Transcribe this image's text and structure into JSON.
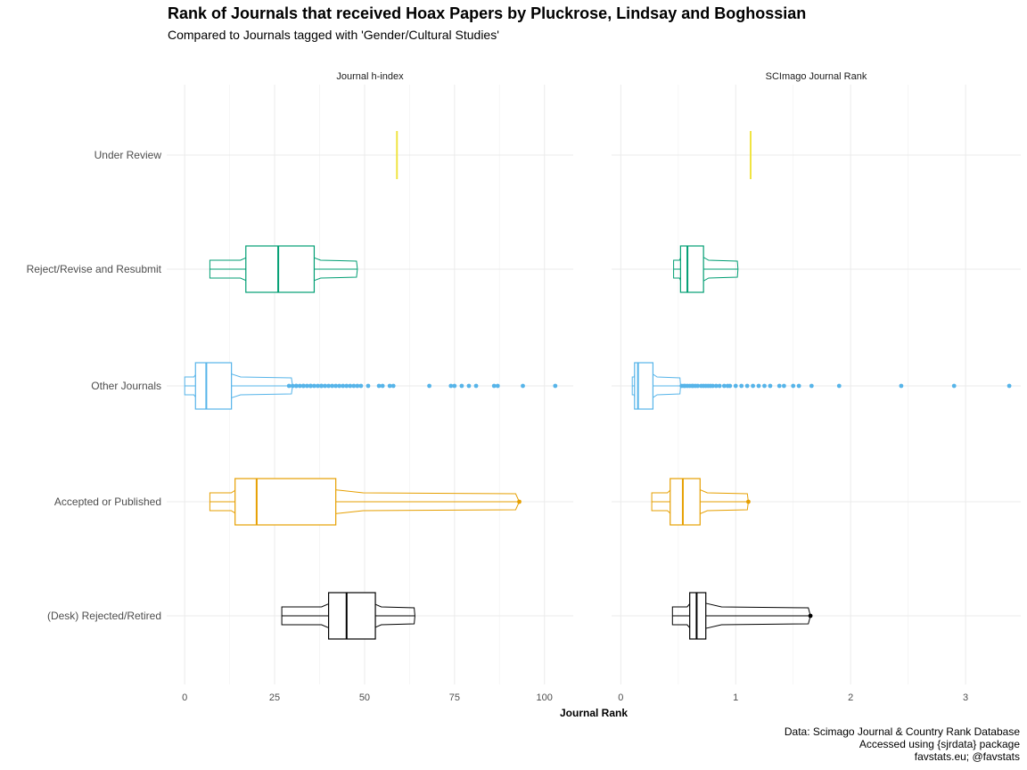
{
  "title": "Rank of Journals that received Hoax Papers by Pluckrose, Lindsay and Boghossian",
  "subtitle": "Compared to Journals tagged with 'Gender/Cultural Studies'",
  "caption": [
    "Data: Scimago Journal & Country Rank Database",
    "Accessed using {sjrdata} package",
    "favstats.eu; @favstats"
  ],
  "chart_data": {
    "type": "violin+boxplot",
    "xlabel": "Journal Rank",
    "categories": [
      "Under Review",
      "Reject/Revise and Resubmit",
      "Other Journals",
      "Accepted or Published",
      "(Desk) Rejected/Retired"
    ],
    "colors": {
      "Under Review": "#F0E442",
      "Reject/Revise and Resubmit": "#009E73",
      "Other Journals": "#56B4E9",
      "Accepted or Published": "#E69F00",
      "(Desk) Rejected/Retired": "#000000"
    },
    "panels": [
      {
        "title": "Journal h-index",
        "xlim": [
          -5,
          108
        ],
        "xticks": [
          0,
          25,
          50,
          75,
          100
        ],
        "xtick_labels": [
          "0",
          "25",
          "50",
          "75",
          "100"
        ],
        "series": [
          {
            "category": "Under Review",
            "min": 59,
            "q1": 59,
            "median": 59,
            "q3": 59,
            "max": 59,
            "outliers": []
          },
          {
            "category": "Reject/Revise and Resubmit",
            "min": 7,
            "q1": 17,
            "median": 26,
            "q3": 36,
            "max": 48,
            "outliers": []
          },
          {
            "category": "Other Journals",
            "min": 0,
            "q1": 3,
            "median": 6,
            "q3": 13,
            "max": 30,
            "outliers": [
              29,
              30,
              31,
              31,
              32,
              33,
              33,
              34,
              35,
              35,
              36,
              37,
              38,
              38,
              39,
              40,
              41,
              42,
              43,
              44,
              45,
              46,
              47,
              48,
              49,
              51,
              54,
              55,
              57,
              58,
              68,
              74,
              75,
              77,
              79,
              81,
              86,
              87,
              94,
              103
            ]
          },
          {
            "category": "Accepted or Published",
            "min": 7,
            "q1": 14,
            "median": 20,
            "q3": 42,
            "max": 93,
            "outliers": [
              93
            ]
          },
          {
            "category": "(Desk) Rejected/Retired",
            "min": 27,
            "q1": 40,
            "median": 45,
            "q3": 53,
            "max": 64,
            "outliers": []
          }
        ]
      },
      {
        "title": "SCImago Journal Rank",
        "xlim": [
          -0.08,
          3.48
        ],
        "xticks": [
          0,
          1,
          2,
          3
        ],
        "xtick_labels": [
          "0",
          "1",
          "2",
          "3"
        ],
        "series": [
          {
            "category": "Under Review",
            "min": 1.13,
            "q1": 1.13,
            "median": 1.13,
            "q3": 1.13,
            "max": 1.13,
            "outliers": []
          },
          {
            "category": "Reject/Revise and Resubmit",
            "min": 0.46,
            "q1": 0.52,
            "median": 0.58,
            "q3": 0.72,
            "max": 1.02,
            "outliers": []
          },
          {
            "category": "Other Journals",
            "min": 0.1,
            "q1": 0.12,
            "median": 0.15,
            "q3": 0.28,
            "max": 0.52,
            "outliers": [
              0.53,
              0.55,
              0.56,
              0.58,
              0.6,
              0.62,
              0.63,
              0.65,
              0.67,
              0.7,
              0.72,
              0.74,
              0.76,
              0.78,
              0.8,
              0.83,
              0.86,
              0.9,
              0.93,
              0.95,
              1.0,
              1.05,
              1.1,
              1.15,
              1.2,
              1.25,
              1.3,
              1.38,
              1.42,
              1.5,
              1.55,
              1.66,
              1.9,
              2.44,
              2.9,
              3.38
            ]
          },
          {
            "category": "Accepted or Published",
            "min": 0.27,
            "q1": 0.43,
            "median": 0.54,
            "q3": 0.69,
            "max": 1.11,
            "outliers": [
              1.11
            ]
          },
          {
            "category": "(Desk) Rejected/Retired",
            "min": 0.45,
            "q1": 0.6,
            "median": 0.66,
            "q3": 0.74,
            "max": 1.65,
            "outliers": [
              1.65
            ]
          }
        ]
      }
    ]
  }
}
